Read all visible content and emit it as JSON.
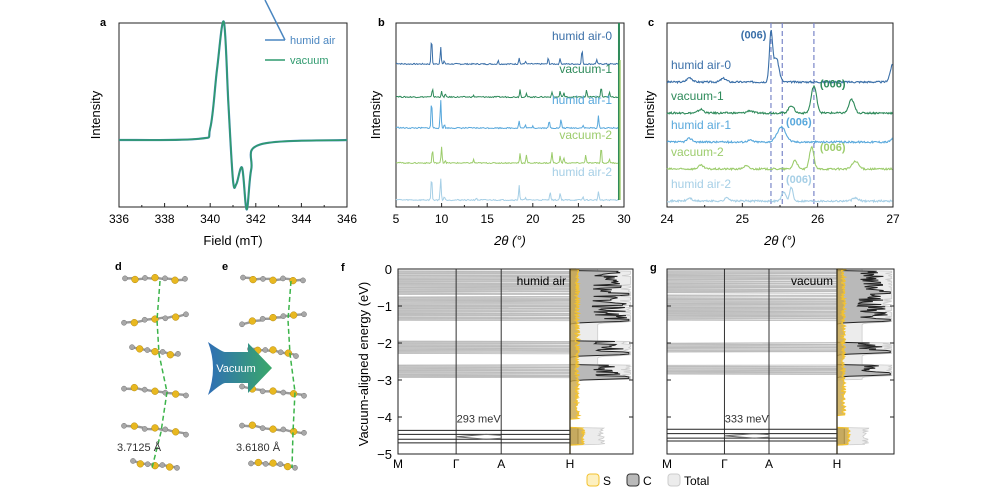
{
  "colors": {
    "humid0": "#3a6fa8",
    "vac1": "#2e8a5a",
    "humid1": "#58a8dc",
    "vac2": "#9ccc6c",
    "humid2": "#a6cfe6",
    "epr_humid": "#4a86c0",
    "epr_vac": "#2f9a6e",
    "dashed": "#7a86c8",
    "band": "#bdbdbd",
    "S": "#f2c230",
    "S_fill": "#fdf0c0",
    "C_fill": "#b9b9b9",
    "total_fill": "#ececec"
  },
  "chart_data": [
    {
      "panel": "a",
      "type": "line",
      "xlabel": "Field (mT)",
      "ylabel": "Intensity",
      "xlim": [
        336,
        346
      ],
      "xticks": [
        "336",
        "338",
        "340",
        "342",
        "344",
        "346"
      ],
      "legend": [
        "humid air",
        "vacuum"
      ],
      "legend_position": "top-right",
      "series": [
        {
          "name": "humid air",
          "x": [
            336,
            339.5,
            340.0,
            340.3,
            340.6,
            340.8,
            341.0,
            341.15,
            341.4,
            341.6,
            341.8,
            342.2,
            346
          ],
          "y": [
            0,
            0.01,
            0.1,
            0.6,
            1.0,
            0.3,
            -0.55,
            -0.6,
            -0.38,
            -0.95,
            -0.4,
            -0.06,
            0
          ]
        },
        {
          "name": "vacuum",
          "x": [
            336,
            339.5,
            340.0,
            340.3,
            340.6,
            340.8,
            341.0,
            341.15,
            341.4,
            341.6,
            341.8,
            342.2,
            346
          ],
          "y": [
            0,
            0.01,
            0.1,
            0.6,
            1.0,
            0.3,
            -0.55,
            -0.6,
            -0.38,
            -0.95,
            -0.4,
            -0.06,
            0
          ]
        }
      ]
    },
    {
      "panel": "b",
      "type": "line",
      "xlabel": "2θ (°)",
      "ylabel": "Intensity",
      "xlim": [
        5,
        30
      ],
      "xticks": [
        "5",
        "10",
        "15",
        "20",
        "25",
        "30"
      ],
      "series_labels": [
        "humid air-0",
        "vacuum-1",
        "humid air-1",
        "vacuum-2",
        "humid air-2"
      ],
      "peaks": [
        {
          "name": "humid air-0",
          "x": [
            8.9,
            9.9,
            10.3,
            16.2,
            18.5,
            19.2,
            21.7,
            23.0,
            25.4,
            27.0,
            29.5
          ],
          "h": [
            0.9,
            0.6,
            0.1,
            0.12,
            0.22,
            0.1,
            0.2,
            0.2,
            0.5,
            0.15,
            1.5
          ]
        },
        {
          "name": "vacuum-1",
          "x": [
            9.0,
            10.0,
            10.4,
            13.5,
            18.6,
            19.3,
            22.1,
            23.0,
            23.4,
            25.9,
            27.5,
            28.4,
            29.5
          ],
          "h": [
            0.3,
            0.18,
            0.1,
            0.05,
            0.25,
            0.1,
            0.18,
            0.2,
            0.15,
            0.25,
            0.35,
            0.15,
            1.5
          ]
        },
        {
          "name": "humid air-1",
          "x": [
            8.9,
            9.9,
            10.3,
            18.5,
            19.2,
            20.0,
            21.8,
            23.1,
            25.5,
            27.2,
            29.5
          ],
          "h": [
            0.95,
            0.95,
            0.12,
            0.25,
            0.1,
            0.08,
            0.25,
            0.3,
            0.1,
            0.4,
            1.5
          ]
        },
        {
          "name": "vacuum-2",
          "x": [
            9.0,
            10.0,
            10.4,
            13.5,
            18.6,
            19.3,
            22.1,
            23.0,
            23.4,
            25.8,
            27.5,
            28.4,
            29.5
          ],
          "h": [
            0.5,
            0.6,
            0.1,
            0.12,
            0.35,
            0.3,
            0.4,
            0.25,
            0.2,
            0.3,
            0.6,
            0.15,
            1.5
          ]
        },
        {
          "name": "humid air-2",
          "x": [
            8.9,
            9.9,
            10.3,
            13.8,
            18.5,
            19.2,
            21.9,
            23.0,
            25.5,
            27.2,
            29.5
          ],
          "h": [
            0.8,
            0.75,
            0.12,
            0.06,
            0.5,
            0.1,
            0.3,
            0.25,
            0.1,
            0.3,
            1.5
          ]
        }
      ]
    },
    {
      "panel": "c",
      "type": "line",
      "xlabel": "2θ (°)",
      "ylabel": "Intensity",
      "xlim": [
        24,
        27
      ],
      "xticks": [
        "24",
        "25",
        "26",
        "27"
      ],
      "dashed_lines_x": [
        25.38,
        25.53,
        25.95
      ],
      "series_labels": [
        "humid air-0",
        "vacuum-1",
        "humid air-1",
        "vacuum-2",
        "humid air-2"
      ],
      "annotation": "(006)",
      "peaks": [
        {
          "name": "humid air-0",
          "x": [
            24.3,
            24.75,
            25.38,
            25.45,
            27.0
          ],
          "h": [
            0.15,
            0.12,
            1.6,
            0.8,
            0.6
          ],
          "w": [
            0.05,
            0.05,
            0.03,
            0.05,
            0.05
          ],
          "label_x": 25.15,
          "label_y_off": 1.65
        },
        {
          "name": "vacuum-1",
          "x": [
            24.45,
            25.1,
            25.65,
            25.95,
            26.45
          ],
          "h": [
            0.12,
            0.08,
            0.25,
            0.9,
            0.45
          ],
          "w": [
            0.05,
            0.05,
            0.05,
            0.05,
            0.05
          ],
          "label_x": 26.2,
          "label_y_off": 1.05
        },
        {
          "name": "humid air-1",
          "x": [
            24.3,
            25.1,
            25.52,
            27.0
          ],
          "h": [
            0.12,
            0.06,
            0.5,
            0.12
          ],
          "w": [
            0.05,
            0.05,
            0.08,
            0.04
          ],
          "label_x": 25.75,
          "label_y_off": 0.75
        },
        {
          "name": "vacuum-2",
          "x": [
            24.45,
            25.05,
            25.7,
            25.92,
            26.5
          ],
          "h": [
            0.12,
            0.1,
            0.3,
            0.75,
            0.25
          ],
          "w": [
            0.05,
            0.05,
            0.04,
            0.04,
            0.06
          ],
          "label_x": 26.2,
          "label_y_off": 0.8
        },
        {
          "name": "humid air-2",
          "x": [
            24.3,
            24.8,
            25.55,
            25.65,
            26.5
          ],
          "h": [
            0.1,
            0.12,
            0.3,
            0.45,
            0.1
          ],
          "w": [
            0.04,
            0.04,
            0.04,
            0.03,
            0.05
          ],
          "label_x": 25.75,
          "label_y_off": 0.8
        }
      ]
    },
    {
      "panel": "f",
      "type": "band-structure",
      "title": "humid air",
      "ylabel": "Vacuum-aligned energy (eV)",
      "ylim": [
        -5,
        0
      ],
      "yticks": [
        "0",
        "−1",
        "−2",
        "−3",
        "−4",
        "−5"
      ],
      "kpoints": [
        "M",
        "Γ",
        "A",
        "H"
      ],
      "band_gap_label": "293 meV",
      "valence_groups": [
        [
          -0.05,
          -0.7
        ],
        [
          -0.75,
          -1.4
        ],
        [
          -1.95,
          -2.3
        ],
        [
          -2.6,
          -2.95
        ]
      ],
      "conduction_levels": [
        -4.36,
        -4.47,
        -4.6,
        -4.7
      ]
    },
    {
      "panel": "g",
      "type": "band-structure",
      "title": "vacuum",
      "ylim": [
        -5,
        0
      ],
      "kpoints": [
        "M",
        "Γ",
        "A",
        "H"
      ],
      "band_gap_label": "333 meV",
      "valence_groups": [
        [
          -0.05,
          -0.65
        ],
        [
          -0.7,
          -1.4
        ],
        [
          -2.0,
          -2.25
        ],
        [
          -2.6,
          -2.85
        ]
      ],
      "conduction_levels": [
        -4.33,
        -4.45,
        -4.57,
        -4.65
      ]
    }
  ],
  "panels": {
    "a": "a",
    "b": "b",
    "c": "c",
    "d": "d",
    "e": "e",
    "f": "f",
    "g": "g"
  },
  "structure": {
    "arrow_label": "Vacuum",
    "distance_d": "3.7125 Å",
    "distance_e": "3.6180 Å"
  },
  "dos_legend": [
    "S",
    "C",
    "Total"
  ]
}
